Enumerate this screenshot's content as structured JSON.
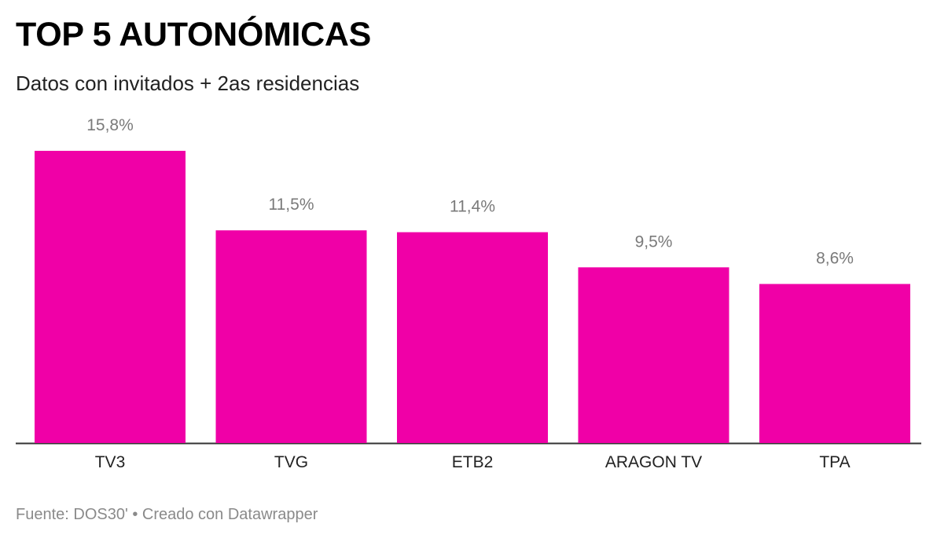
{
  "header": {
    "title": "TOP 5 AUTONÓMICAS",
    "subtitle": "Datos con invitados + 2as residencias"
  },
  "footer": {
    "source": "Fuente: DOS30' • Creado con Datawrapper"
  },
  "colors": {
    "bar": "#f000a7",
    "axis": "#333333",
    "value_label": "#7a7a7a",
    "category_label": "#222222"
  },
  "chart_data": {
    "type": "bar",
    "title": "TOP 5 AUTONÓMICAS",
    "subtitle": "Datos con invitados + 2as residencias",
    "categories": [
      "TV3",
      "TVG",
      "ETB2",
      "ARAGON TV",
      "TPA"
    ],
    "values": [
      15.8,
      11.5,
      11.4,
      9.5,
      8.6
    ],
    "value_labels": [
      "15,8%",
      "11,5%",
      "11,4%",
      "9,5%",
      "8,6%"
    ],
    "unit": "%",
    "xlabel": "",
    "ylabel": "",
    "ylim": [
      0,
      15.8
    ],
    "grid": false,
    "legend": "none"
  }
}
